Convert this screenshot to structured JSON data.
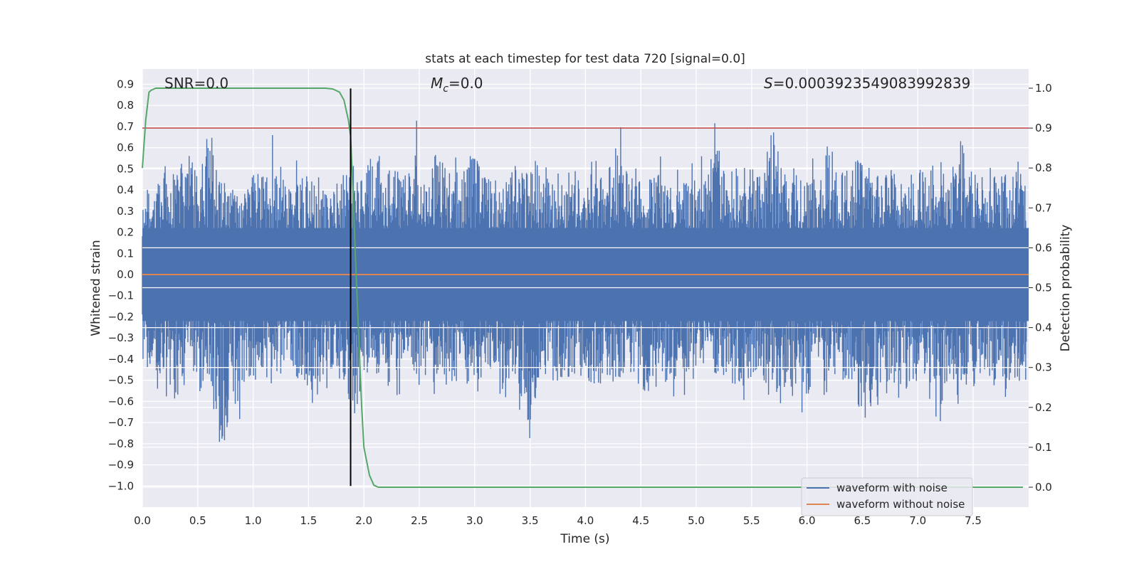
{
  "chart_data": {
    "type": "line",
    "title": "stats at each timestep for test data 720 [signal=0.0]",
    "xlabel": "Time (s)",
    "ylabel": "Whitened strain",
    "y2label": "Detection probability",
    "xlim": [
      0.0,
      8.0
    ],
    "ylim": [
      -1.09,
      0.98
    ],
    "y2lim": [
      -0.05,
      1.04
    ],
    "x_ticks": [
      0.0,
      0.5,
      1.0,
      1.5,
      2.0,
      2.5,
      3.0,
      3.5,
      4.0,
      4.5,
      5.0,
      5.5,
      6.0,
      6.5,
      7.0,
      7.5
    ],
    "x_tick_labels": [
      "0.0",
      "0.5",
      "1.0",
      "1.5",
      "2.0",
      "2.5",
      "3.0",
      "3.5",
      "4.0",
      "4.5",
      "5.0",
      "5.5",
      "6.0",
      "6.5",
      "7.0",
      "7.5"
    ],
    "y_ticks": [
      0.9,
      0.8,
      0.7,
      0.6,
      0.5,
      0.4,
      0.3,
      0.2,
      0.1,
      0.0,
      -0.1,
      -0.2,
      -0.3,
      -0.4,
      -0.5,
      -0.6,
      -0.7,
      -0.8,
      -0.9,
      -1.0
    ],
    "y_tick_labels": [
      "0.9",
      "0.8",
      "0.7",
      "0.6",
      "0.5",
      "0.4",
      "0.3",
      "0.2",
      "0.1",
      "0.0",
      "−0.1",
      "−0.2",
      "−0.3",
      "−0.4",
      "−0.5",
      "−0.6",
      "−0.7",
      "−0.8",
      "−0.9",
      "−1.0"
    ],
    "y2_ticks": [
      1.0,
      0.9,
      0.8,
      0.7,
      0.6,
      0.5,
      0.4,
      0.3,
      0.2,
      0.1,
      0.0
    ],
    "y2_tick_labels": [
      "1.0",
      "0.9",
      "0.8",
      "0.7",
      "0.6",
      "0.5",
      "0.4",
      "0.3",
      "0.2",
      "0.1",
      "0.0"
    ],
    "grid": true,
    "legend_position": "bottom-right",
    "annotations": {
      "snr": "SNR=0.0",
      "mc_symbol": "M",
      "mc_sub": "c",
      "mc_value": "=0.0",
      "s_symbol": "S",
      "s_value": "=0.0003923549083992839"
    },
    "series": [
      {
        "name": "waveform with noise",
        "color": "#4c72b0",
        "description": "whitened noisy strain, dense noise envelope roughly ±0.5",
        "envelope_upper": [
          0.45,
          0.5,
          0.62,
          0.55,
          0.72,
          0.55,
          0.82,
          0.52,
          0.5,
          0.6,
          0.55,
          0.58,
          0.72,
          0.5,
          0.55,
          0.58,
          0.52,
          0.5,
          0.56,
          0.55,
          0.52,
          0.75,
          0.58,
          0.6,
          0.55,
          0.78,
          0.58,
          0.8,
          0.55,
          0.6,
          0.72,
          0.56,
          0.55,
          0.58,
          0.62,
          0.55,
          0.72,
          0.5,
          0.55,
          0.52,
          0.6,
          0.55,
          0.58,
          0.82,
          0.55,
          0.52,
          0.56,
          0.58,
          0.55,
          0.6,
          0.55,
          0.58,
          0.75,
          0.55,
          0.62,
          0.6,
          0.55,
          0.88,
          0.56,
          0.6,
          0.58,
          0.55,
          0.78,
          0.6,
          0.58,
          0.72,
          0.55,
          0.6,
          0.58,
          0.62,
          0.55,
          0.6,
          0.58,
          0.55,
          0.82,
          0.6,
          0.55,
          0.62,
          0.58,
          0.65,
          0.6
        ],
        "envelope_lower": [
          -0.5,
          -0.55,
          -0.62,
          -0.74,
          -0.6,
          -0.7,
          -0.58,
          -1.0,
          -0.85,
          -0.65,
          -0.62,
          -0.55,
          -0.64,
          -0.58,
          -0.6,
          -0.66,
          -0.68,
          -0.58,
          -0.6,
          -0.75,
          -0.62,
          -0.58,
          -0.66,
          -0.6,
          -0.55,
          -0.62,
          -0.58,
          -0.7,
          -0.68,
          -0.62,
          -0.6,
          -0.58,
          -0.72,
          -0.6,
          -0.62,
          -0.88,
          -0.58,
          -0.6,
          -0.62,
          -0.6,
          -0.58,
          -0.62,
          -0.65,
          -0.6,
          -0.58,
          -0.62,
          -0.72,
          -0.6,
          -0.62,
          -0.6,
          -0.58,
          -0.7,
          -0.62,
          -0.6,
          -0.65,
          -0.58,
          -0.6,
          -0.62,
          -0.75,
          -0.6,
          -0.7,
          -0.62,
          -0.6,
          -0.58,
          -0.65,
          -0.62,
          -0.78,
          -0.6,
          -0.62,
          -0.65,
          -0.6,
          -0.58,
          -0.92,
          -0.6,
          -0.62,
          -0.65,
          -0.6,
          -0.58,
          -0.72,
          -0.6,
          -0.62
        ]
      },
      {
        "name": "waveform without noise",
        "color": "#dd8452",
        "x": [
          0.0,
          8.0
        ],
        "y": [
          0.0,
          0.0
        ]
      },
      {
        "name": "Detection probability",
        "axis": "right",
        "color": "#55a868",
        "x": [
          0.0,
          0.03,
          0.06,
          0.08,
          0.12,
          0.2,
          0.5,
          1.0,
          1.5,
          1.65,
          1.72,
          1.78,
          1.82,
          1.86,
          1.88,
          1.9,
          1.92,
          1.95,
          1.98,
          2.0,
          2.05,
          2.09,
          2.13,
          2.2,
          3.0,
          5.0,
          7.0,
          7.95
        ],
        "y": [
          0.8,
          0.92,
          0.99,
          0.995,
          1.0,
          1.0,
          1.0,
          1.0,
          1.0,
          1.0,
          0.998,
          0.99,
          0.97,
          0.92,
          0.88,
          0.75,
          0.6,
          0.4,
          0.2,
          0.1,
          0.03,
          0.005,
          0.0,
          0.0,
          0.0,
          0.0,
          0.0,
          0.0
        ]
      },
      {
        "name": "threshold",
        "axis": "right",
        "color": "#c44e52",
        "x": [
          0.0,
          8.0
        ],
        "y": [
          0.9,
          0.9
        ]
      },
      {
        "name": "timestep marker",
        "color": "#000000",
        "x": [
          1.88,
          1.88
        ],
        "y": [
          -1.0,
          0.88
        ]
      }
    ]
  }
}
